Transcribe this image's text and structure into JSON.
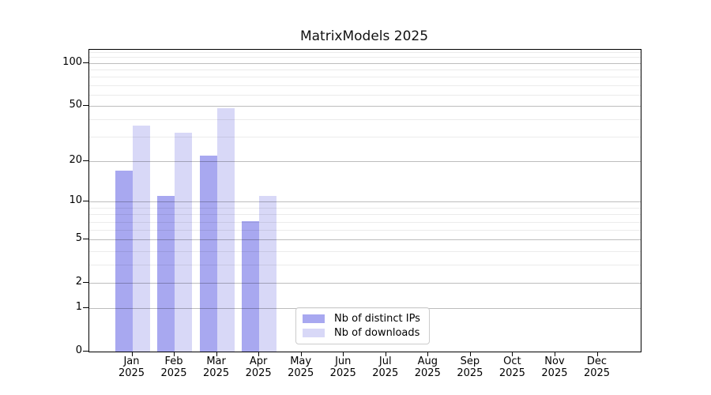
{
  "title": "MatrixModels 2025",
  "chart_data": {
    "type": "bar",
    "title": "MatrixModels 2025",
    "year": "2025",
    "categories": [
      "Jan",
      "Feb",
      "Mar",
      "Apr",
      "May",
      "Jun",
      "Jul",
      "Aug",
      "Sep",
      "Oct",
      "Nov",
      "Dec"
    ],
    "series": [
      {
        "name": "Nb of distinct IPs",
        "color": "#a8a8f0",
        "values": [
          17,
          11,
          22,
          7,
          0,
          0,
          0,
          0,
          0,
          0,
          0,
          0
        ]
      },
      {
        "name": "Nb of downloads",
        "color": "#d8d8f7",
        "values": [
          36,
          32,
          48,
          11,
          0,
          0,
          0,
          0,
          0,
          0,
          0,
          0
        ]
      }
    ],
    "xlabel": "",
    "ylabel": "",
    "yscale": "log1p",
    "ylim": [
      0,
      124
    ],
    "y_ticks": [
      0,
      1,
      2,
      5,
      10,
      20,
      50,
      100
    ],
    "y_minor_ticks": [
      3,
      4,
      6,
      7,
      8,
      9,
      30,
      40,
      60,
      70,
      80,
      90,
      110,
      120
    ],
    "grid": "both",
    "legend_position": "inside lower-center-left",
    "colors": {
      "distinct_ips": "#a8a8f0",
      "downloads": "#d8d8f7",
      "major_grid": "rgba(0,0,0,0.26)",
      "minor_grid": "rgba(0,0,0,0.08)",
      "spine": "#000000"
    }
  }
}
